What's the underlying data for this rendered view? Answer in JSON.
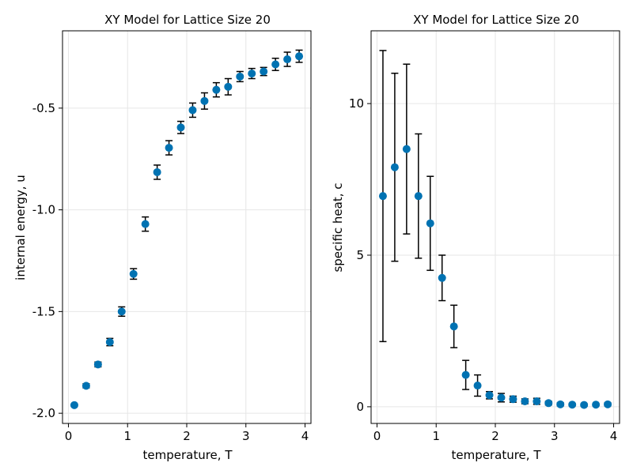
{
  "colors": {
    "marker": "#0072b2",
    "errorbar": "#000000"
  },
  "chart_data": [
    {
      "type": "scatter",
      "title": "XY Model for Lattice Size 20",
      "xlabel": "temperature, T",
      "ylabel": "internal energy, u",
      "xlim": [
        -0.1,
        4.1
      ],
      "ylim": [
        -2.05,
        -0.12
      ],
      "xticks": [
        0,
        1,
        2,
        3,
        4
      ],
      "xtick_labels": [
        "0",
        "1",
        "2",
        "3",
        "4"
      ],
      "yticks": [
        -2.0,
        -1.5,
        -1.0,
        -0.5
      ],
      "ytick_labels": [
        "-2.0",
        "-1.5",
        "-1.0",
        "-0.5"
      ],
      "grid": true,
      "x": [
        0.1,
        0.3,
        0.5,
        0.7,
        0.9,
        1.1,
        1.3,
        1.5,
        1.7,
        1.9,
        2.1,
        2.3,
        2.5,
        2.7,
        2.9,
        3.1,
        3.3,
        3.5,
        3.7,
        3.9
      ],
      "y": [
        -1.96,
        -1.865,
        -1.76,
        -1.65,
        -1.5,
        -1.315,
        -1.07,
        -0.815,
        -0.695,
        -0.595,
        -0.51,
        -0.465,
        -0.41,
        -0.395,
        -0.345,
        -0.33,
        -0.32,
        -0.285,
        -0.26,
        -0.245
      ],
      "yerr": [
        0.005,
        0.01,
        0.012,
        0.018,
        0.023,
        0.026,
        0.035,
        0.035,
        0.035,
        0.03,
        0.035,
        0.04,
        0.035,
        0.04,
        0.025,
        0.025,
        0.02,
        0.03,
        0.035,
        0.03
      ]
    },
    {
      "type": "scatter",
      "title": "XY Model for Lattice Size 20",
      "xlabel": "temperature, T",
      "ylabel": "specific heat, c",
      "xlim": [
        -0.1,
        4.1
      ],
      "ylim": [
        -0.55,
        12.4
      ],
      "xticks": [
        0,
        1,
        2,
        3,
        4
      ],
      "xtick_labels": [
        "0",
        "1",
        "2",
        "3",
        "4"
      ],
      "yticks": [
        0,
        5,
        10
      ],
      "ytick_labels": [
        "0",
        "5",
        "10"
      ],
      "grid": true,
      "x": [
        0.1,
        0.3,
        0.5,
        0.7,
        0.9,
        1.1,
        1.3,
        1.5,
        1.7,
        1.9,
        2.1,
        2.3,
        2.5,
        2.7,
        2.9,
        3.1,
        3.3,
        3.5,
        3.7,
        3.9
      ],
      "y": [
        6.95,
        7.9,
        8.5,
        6.95,
        6.05,
        4.25,
        2.65,
        1.05,
        0.7,
        0.38,
        0.3,
        0.25,
        0.18,
        0.18,
        0.12,
        0.08,
        0.07,
        0.06,
        0.07,
        0.08
      ],
      "yerr": [
        4.8,
        3.1,
        2.8,
        2.05,
        1.55,
        0.75,
        0.7,
        0.48,
        0.35,
        0.12,
        0.14,
        0.1,
        0.08,
        0.1,
        0.06,
        0.05,
        0.04,
        0.04,
        0.04,
        0.05
      ]
    }
  ]
}
